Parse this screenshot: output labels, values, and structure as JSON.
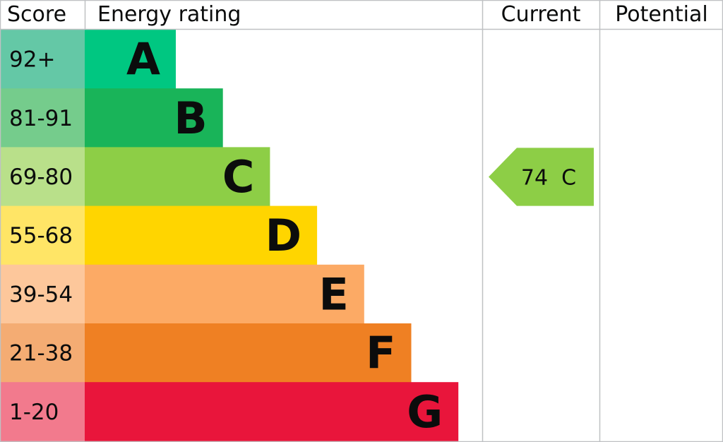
{
  "chart_data": {
    "type": "bar",
    "headers": {
      "score": "Score",
      "rating": "Energy rating",
      "current": "Current",
      "potential": "Potential"
    },
    "bands": [
      {
        "letter": "A",
        "range": "92+",
        "color": "#00c781",
        "score_color": "#64c8a6"
      },
      {
        "letter": "B",
        "range": "81-91",
        "color": "#19b459",
        "score_color": "#75cc8c"
      },
      {
        "letter": "C",
        "range": "69-80",
        "color": "#8dce46",
        "score_color": "#b9e08a"
      },
      {
        "letter": "D",
        "range": "55-68",
        "color": "#ffd500",
        "score_color": "#ffe566"
      },
      {
        "letter": "E",
        "range": "39-54",
        "color": "#fcaa65",
        "score_color": "#fdc79b"
      },
      {
        "letter": "F",
        "range": "21-38",
        "color": "#ef8023",
        "score_color": "#f4ac73"
      },
      {
        "letter": "G",
        "range": "1-20",
        "color": "#e9153b",
        "score_color": "#f27a8d"
      }
    ],
    "current": {
      "score": 74,
      "letter": "C",
      "label": "74  C",
      "color": "#8dce46"
    },
    "potential": null,
    "grid_color": "#bfc1c3"
  }
}
